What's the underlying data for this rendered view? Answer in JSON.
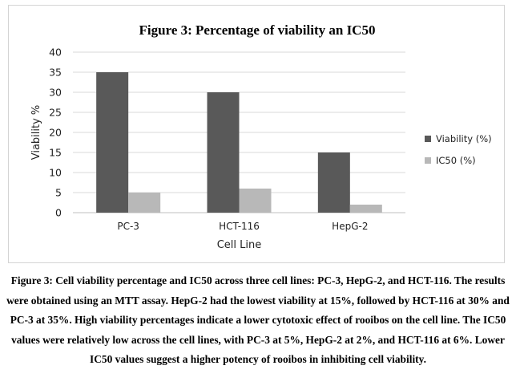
{
  "chart_data": {
    "type": "bar",
    "title": "Figure 3: Percentage of viability an IC50",
    "xlabel": "Cell Line",
    "ylabel": "Viability %",
    "categories": [
      "PC-3",
      "HCT-116",
      "HepG-2"
    ],
    "series": [
      {
        "name": "Viability (%)",
        "values": [
          35,
          30,
          15
        ],
        "color": "#595959"
      },
      {
        "name": "IC50 (%)",
        "values": [
          5,
          6,
          2
        ],
        "color": "#b8b8b8"
      }
    ],
    "ylim": [
      0,
      40
    ],
    "yticks": [
      0,
      5,
      10,
      15,
      20,
      25,
      30,
      35,
      40
    ],
    "grid": true,
    "legend_position": "right"
  },
  "caption": "Figure 3: Cell viability percentage and IC50 across three cell lines: PC-3, HepG-2, and HCT-116. The results were obtained using an MTT assay. HepG-2 had the lowest viability at 15%, followed by HCT-116 at 30% and PC-3 at 35%. High viability percentages indicate a lower cytotoxic effect of rooibos on the cell line. The IC50 values were relatively low across the cell lines, with PC-3 at 5%, HepG-2 at 2%, and HCT-116 at 6%. Lower IC50 values suggest a higher potency of rooibos in inhibiting cell viability."
}
